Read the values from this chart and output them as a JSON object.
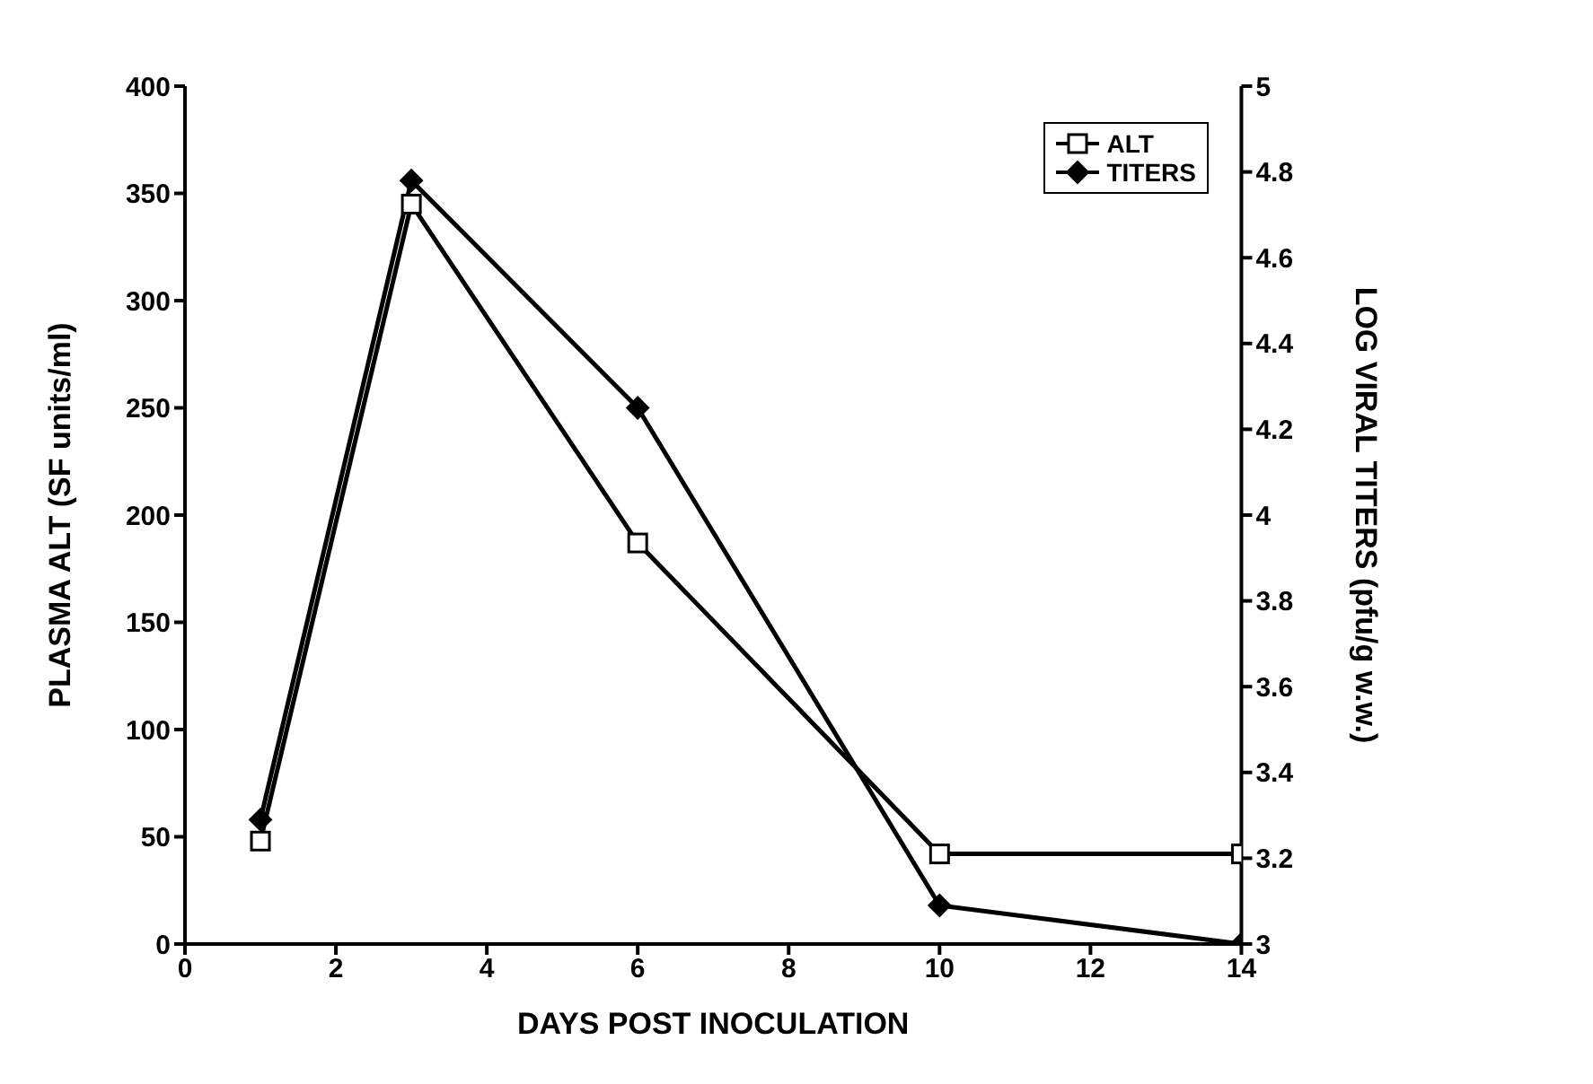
{
  "chart_data": {
    "type": "line",
    "xlabel": "DAYS POST INOCULATION",
    "ylabel": "PLASMA ALT (SF units/ml)",
    "y2label": "LOG VIRAL TITERS (pfu/g w.w.)",
    "x": [
      1,
      3,
      6,
      10,
      14
    ],
    "series": [
      {
        "name": "ALT",
        "color": "#000000",
        "marker": "square",
        "values": [
          48,
          345,
          187,
          42,
          42
        ]
      },
      {
        "name": "TITERS",
        "color": "#000000",
        "marker": "diamond",
        "axis": "y2",
        "values": [
          3.29,
          4.78,
          4.25,
          3.09,
          3.0
        ]
      }
    ],
    "xlim": [
      0,
      14
    ],
    "xticks": [
      0,
      2,
      4,
      6,
      8,
      10,
      12,
      14
    ],
    "ylim": [
      0,
      400
    ],
    "yticks": [
      0,
      50,
      100,
      150,
      200,
      250,
      300,
      350,
      400
    ],
    "y2lim": [
      3,
      5
    ],
    "y2ticks": [
      3,
      3.2,
      3.4,
      3.6,
      3.8,
      4,
      4.2,
      4.4,
      4.6,
      4.8,
      5
    ],
    "grid": false,
    "legend": "top right",
    "line_style": "solid"
  }
}
